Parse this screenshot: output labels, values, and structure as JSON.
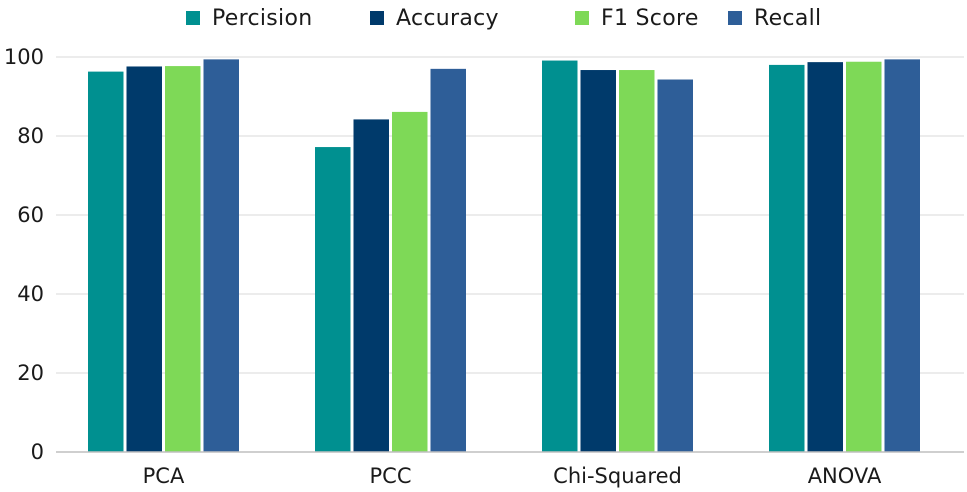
{
  "chart_data": {
    "type": "bar",
    "title": "",
    "xlabel": "",
    "ylabel": "",
    "categories": [
      "PCA",
      "PCC",
      "Chi-Squared",
      "ANOVA"
    ],
    "series": [
      {
        "name": "Percision",
        "color": "#009090",
        "values": [
          96.3,
          77.2,
          99.1,
          98.0
        ]
      },
      {
        "name": "Accuracy",
        "color": "#003a6b",
        "values": [
          97.6,
          84.2,
          96.7,
          98.7
        ]
      },
      {
        "name": "F1 Score",
        "color": "#7ed957",
        "values": [
          97.7,
          86.1,
          96.7,
          98.8
        ]
      },
      {
        "name": "Recall",
        "color": "#2e5e98",
        "values": [
          99.4,
          97.0,
          94.3,
          99.4
        ]
      }
    ],
    "ylim": [
      0,
      100
    ],
    "yticks": [
      0,
      20,
      40,
      60,
      80,
      100
    ],
    "grid": true,
    "legend_position": "top"
  }
}
